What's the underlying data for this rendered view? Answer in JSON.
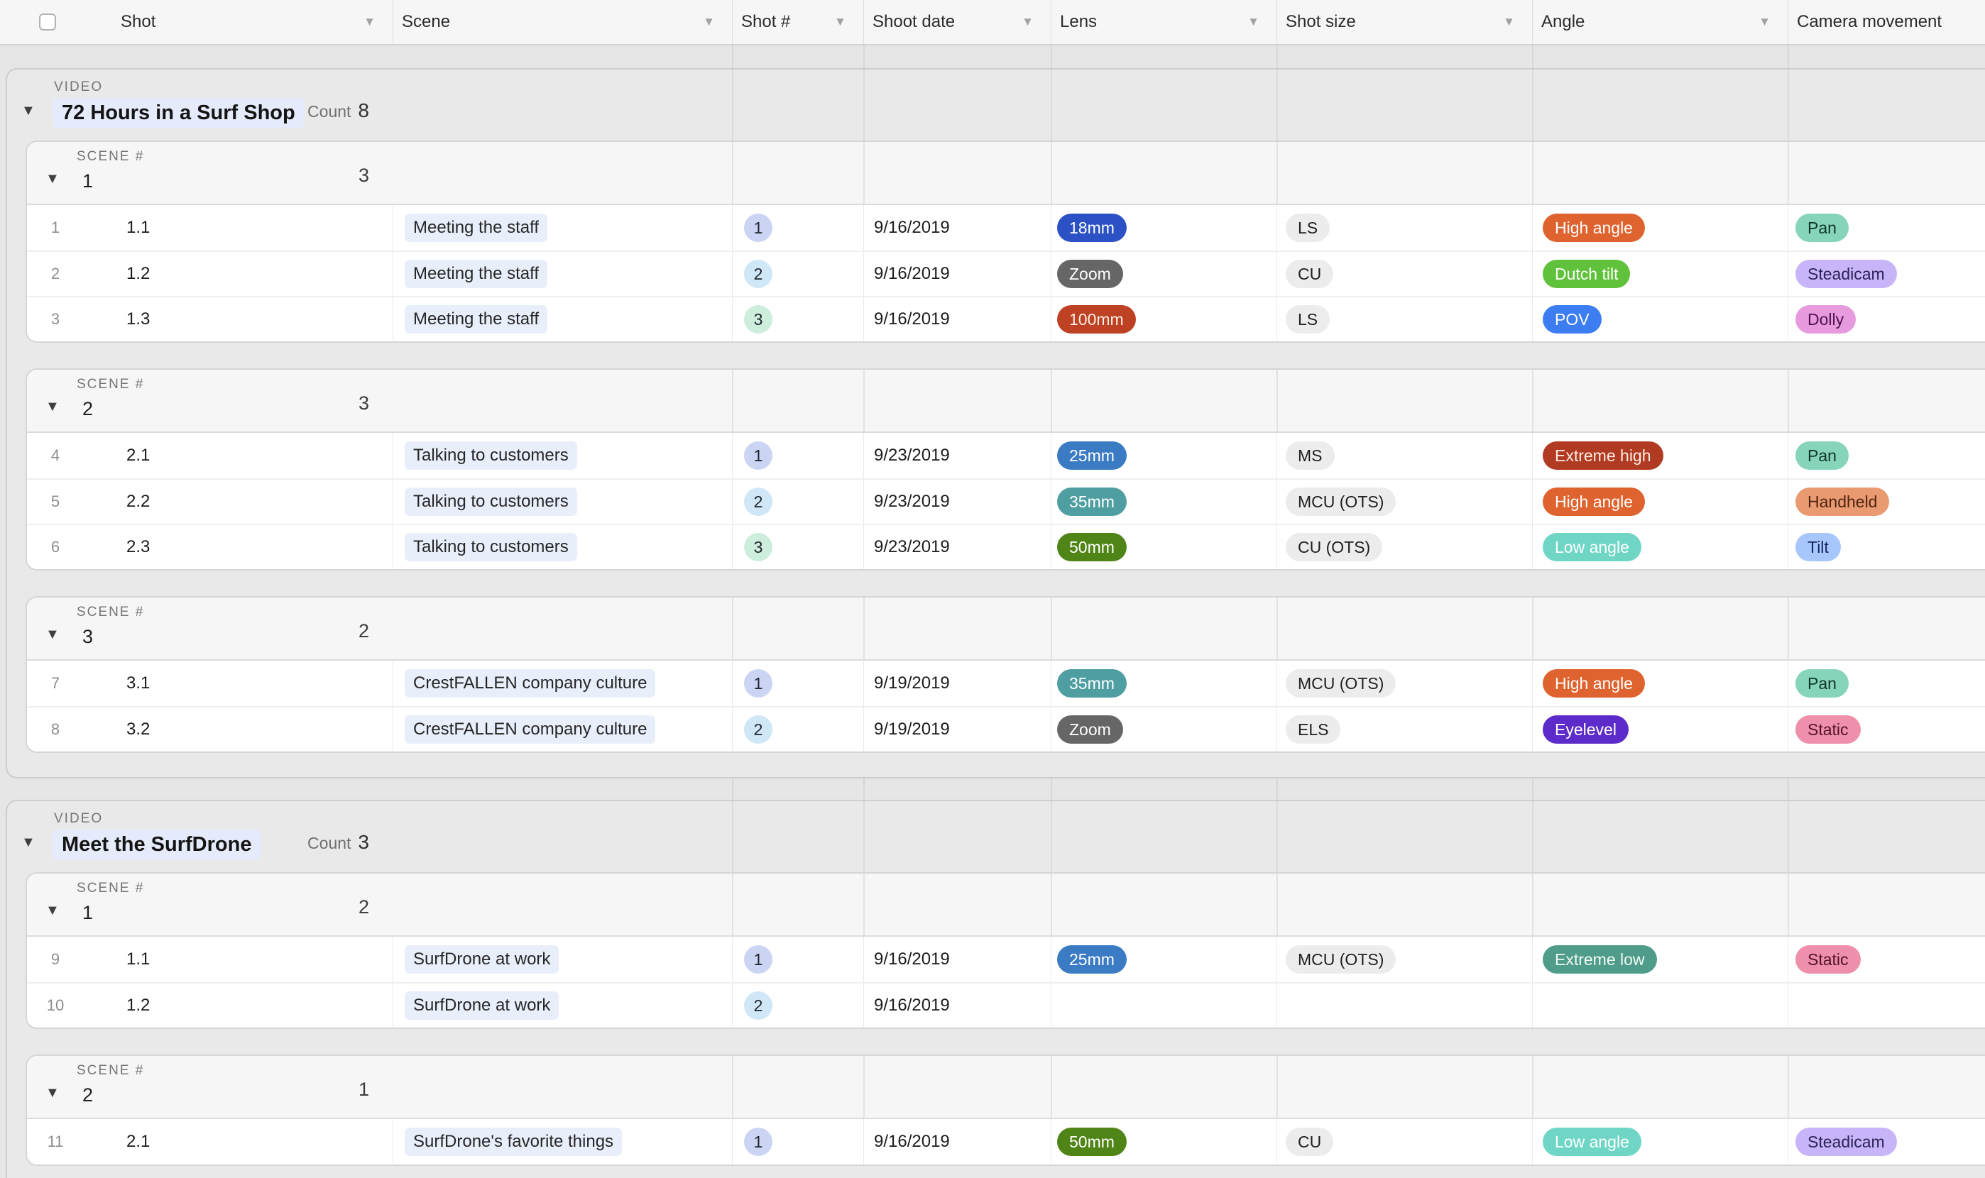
{
  "columns": [
    {
      "id": "shot",
      "label": "Shot",
      "has_menu": true
    },
    {
      "id": "scene",
      "label": "Scene",
      "has_menu": true
    },
    {
      "id": "shot_no",
      "label": "Shot #",
      "has_menu": true
    },
    {
      "id": "shoot_date",
      "label": "Shoot date",
      "has_menu": true
    },
    {
      "id": "lens",
      "label": "Lens",
      "has_menu": true
    },
    {
      "id": "shot_size",
      "label": "Shot size",
      "has_menu": true
    },
    {
      "id": "angle",
      "label": "Angle",
      "has_menu": true
    },
    {
      "id": "camera_movement",
      "label": "Camera movement",
      "has_menu": false
    }
  ],
  "count_label": "Count",
  "shot_no_colors": {
    "1": "#ccd4f4",
    "2": "#cfe7f6",
    "3": "#cdeedd"
  },
  "pill_colors": {
    "blue_dark": {
      "bg": "#2b51c5",
      "fg": "#ffffff"
    },
    "gray_dark": {
      "bg": "#666666",
      "fg": "#ffffff"
    },
    "rust": {
      "bg": "#bd4122",
      "fg": "#ffeee6"
    },
    "steel_blue": {
      "bg": "#3a7bc4",
      "fg": "#ffffff"
    },
    "teal": {
      "bg": "#4f9ea1",
      "fg": "#ffffff"
    },
    "olive": {
      "bg": "#4f8416",
      "fg": "#ffffff"
    },
    "gray_light": {
      "bg": "#ececec",
      "fg": "#1f1f1f"
    },
    "orange": {
      "bg": "#df632e",
      "fg": "#ffffff"
    },
    "green_bright": {
      "bg": "#5fc23a",
      "fg": "#ffffff"
    },
    "blue_bright": {
      "bg": "#3d7df2",
      "fg": "#ffffff"
    },
    "brick": {
      "bg": "#b13b22",
      "fg": "#ffece4"
    },
    "turquoise": {
      "bg": "#6fd6c6",
      "fg": "#ffffff"
    },
    "purple": {
      "bg": "#5d2bc9",
      "fg": "#ffffff"
    },
    "teal_dark": {
      "bg": "#509c8a",
      "fg": "#effaf5"
    },
    "mint": {
      "bg": "#86d4ba",
      "fg": "#103528"
    },
    "lavender": {
      "bg": "#c8b5f9",
      "fg": "#2a2356"
    },
    "orchid": {
      "bg": "#e79ade",
      "fg": "#4d1348"
    },
    "salmon": {
      "bg": "#e99a70",
      "fg": "#4e2410"
    },
    "periwinkle": {
      "bg": "#a7c6fb",
      "fg": "#16295e"
    },
    "pink": {
      "bg": "#ee8fab",
      "fg": "#511227"
    }
  },
  "groups": [
    {
      "field_label": "VIDEO",
      "title": "72 Hours in a Surf Shop",
      "count": "8",
      "scenes": [
        {
          "field_label": "SCENE #",
          "number": "1",
          "count": "3",
          "rows": [
            {
              "num": "1",
              "shot": "1.1",
              "scene": "Meeting the staff",
              "shot_no": "1",
              "date": "9/16/2019",
              "lens": [
                "18mm",
                "blue_dark"
              ],
              "size": [
                "LS",
                "gray_light"
              ],
              "angle": [
                "High angle",
                "orange"
              ],
              "camera": [
                "Pan",
                "mint"
              ]
            },
            {
              "num": "2",
              "shot": "1.2",
              "scene": "Meeting the staff",
              "shot_no": "2",
              "date": "9/16/2019",
              "lens": [
                "Zoom",
                "gray_dark"
              ],
              "size": [
                "CU",
                "gray_light"
              ],
              "angle": [
                "Dutch tilt",
                "green_bright"
              ],
              "camera": [
                "Steadicam",
                "lavender"
              ]
            },
            {
              "num": "3",
              "shot": "1.3",
              "scene": "Meeting the staff",
              "shot_no": "3",
              "date": "9/16/2019",
              "lens": [
                "100mm",
                "rust"
              ],
              "size": [
                "LS",
                "gray_light"
              ],
              "angle": [
                "POV",
                "blue_bright"
              ],
              "camera": [
                "Dolly",
                "orchid"
              ]
            }
          ]
        },
        {
          "field_label": "SCENE #",
          "number": "2",
          "count": "3",
          "rows": [
            {
              "num": "4",
              "shot": "2.1",
              "scene": "Talking to customers",
              "shot_no": "1",
              "date": "9/23/2019",
              "lens": [
                "25mm",
                "steel_blue"
              ],
              "size": [
                "MS",
                "gray_light"
              ],
              "angle": [
                "Extreme high",
                "brick"
              ],
              "camera": [
                "Pan",
                "mint"
              ]
            },
            {
              "num": "5",
              "shot": "2.2",
              "scene": "Talking to customers",
              "shot_no": "2",
              "date": "9/23/2019",
              "lens": [
                "35mm",
                "teal"
              ],
              "size": [
                "MCU (OTS)",
                "gray_light"
              ],
              "angle": [
                "High angle",
                "orange"
              ],
              "camera": [
                "Handheld",
                "salmon"
              ]
            },
            {
              "num": "6",
              "shot": "2.3",
              "scene": "Talking to customers",
              "shot_no": "3",
              "date": "9/23/2019",
              "lens": [
                "50mm",
                "olive"
              ],
              "size": [
                "CU (OTS)",
                "gray_light"
              ],
              "angle": [
                "Low angle",
                "turquoise"
              ],
              "camera": [
                "Tilt",
                "periwinkle"
              ]
            }
          ]
        },
        {
          "field_label": "SCENE #",
          "number": "3",
          "count": "2",
          "rows": [
            {
              "num": "7",
              "shot": "3.1",
              "scene": "CrestFALLEN company culture",
              "shot_no": "1",
              "date": "9/19/2019",
              "lens": [
                "35mm",
                "teal"
              ],
              "size": [
                "MCU (OTS)",
                "gray_light"
              ],
              "angle": [
                "High angle",
                "orange"
              ],
              "camera": [
                "Pan",
                "mint"
              ]
            },
            {
              "num": "8",
              "shot": "3.2",
              "scene": "CrestFALLEN company culture",
              "shot_no": "2",
              "date": "9/19/2019",
              "lens": [
                "Zoom",
                "gray_dark"
              ],
              "size": [
                "ELS",
                "gray_light"
              ],
              "angle": [
                "Eyelevel",
                "purple"
              ],
              "camera": [
                "Static",
                "pink"
              ]
            }
          ]
        }
      ]
    },
    {
      "field_label": "VIDEO",
      "title": "Meet the SurfDrone",
      "count": "3",
      "scenes": [
        {
          "field_label": "SCENE #",
          "number": "1",
          "count": "2",
          "rows": [
            {
              "num": "9",
              "shot": "1.1",
              "scene": "SurfDrone at work",
              "shot_no": "1",
              "date": "9/16/2019",
              "lens": [
                "25mm",
                "steel_blue"
              ],
              "size": [
                "MCU (OTS)",
                "gray_light"
              ],
              "angle": [
                "Extreme low",
                "teal_dark"
              ],
              "camera": [
                "Static",
                "pink"
              ]
            },
            {
              "num": "10",
              "shot": "1.2",
              "scene": "SurfDrone at work",
              "shot_no": "2",
              "date": "9/16/2019",
              "lens": null,
              "size": null,
              "angle": null,
              "camera": null
            }
          ]
        },
        {
          "field_label": "SCENE #",
          "number": "2",
          "count": "1",
          "rows": [
            {
              "num": "11",
              "shot": "2.1",
              "scene": "SurfDrone's favorite things",
              "shot_no": "1",
              "date": "9/16/2019",
              "lens": [
                "50mm",
                "olive"
              ],
              "size": [
                "CU",
                "gray_light"
              ],
              "angle": [
                "Low angle",
                "turquoise"
              ],
              "camera": [
                "Steadicam",
                "lavender"
              ]
            }
          ]
        }
      ]
    }
  ]
}
